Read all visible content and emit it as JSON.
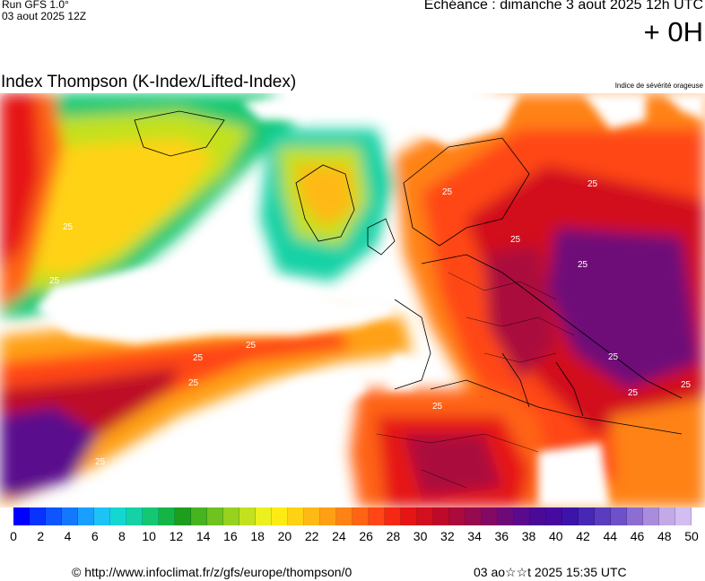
{
  "header": {
    "run_label": "Run GFS 1.0°",
    "run_date": "03 aout 2025 12Z",
    "echeance": "Echéance : dimanche 3 aout 2025 12h UTC",
    "offset": "+ 0H"
  },
  "map": {
    "title": "Index Thompson (K-Index/Lifted-Index)",
    "subtitle": "Indice de sévérité orageuse",
    "contour_label": "25"
  },
  "legend": {
    "ticks": [
      "0",
      "2",
      "4",
      "6",
      "8",
      "10",
      "12",
      "14",
      "16",
      "18",
      "20",
      "22",
      "24",
      "26",
      "28",
      "30",
      "32",
      "34",
      "36",
      "38",
      "40",
      "42",
      "44",
      "46",
      "48",
      "50"
    ],
    "colors": [
      "#0000ff",
      "#0a32ff",
      "#0f55ff",
      "#1478ff",
      "#19a0ff",
      "#1ec3f5",
      "#14d7d2",
      "#14d2a5",
      "#14c873",
      "#14b446",
      "#1e9e1e",
      "#46b41e",
      "#6ec31e",
      "#96d21e",
      "#c3e11e",
      "#ebf01e",
      "#ffeb14",
      "#ffd214",
      "#ffb914",
      "#ffa014",
      "#ff8214",
      "#ff6414",
      "#ff4614",
      "#f52814",
      "#e61414",
      "#d20f1e",
      "#be0a28",
      "#aa0a3c",
      "#960a50",
      "#820a64",
      "#6e0a78",
      "#5a0a8c",
      "#4b0a96",
      "#460aa0",
      "#3c14aa",
      "#4628b4",
      "#5a3cbe",
      "#6e50c8",
      "#8c6ed2",
      "#aa8cdc",
      "#c3aae6",
      "#d2bef0"
    ]
  },
  "footer": {
    "copyright_url": "© http://www.infoclimat.fr/z/gfs/europe/thompson/0",
    "generated": "03 ao☆☆t 2025 15:35 UTC"
  }
}
